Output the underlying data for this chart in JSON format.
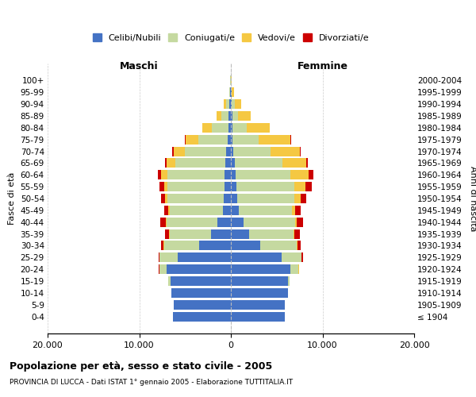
{
  "age_groups": [
    "100+",
    "95-99",
    "90-94",
    "85-89",
    "80-84",
    "75-79",
    "70-74",
    "65-69",
    "60-64",
    "55-59",
    "50-54",
    "45-49",
    "40-44",
    "35-39",
    "30-34",
    "25-29",
    "20-24",
    "15-19",
    "10-14",
    "5-9",
    "0-4"
  ],
  "birth_years": [
    "≤ 1904",
    "1905-1909",
    "1910-1914",
    "1915-1919",
    "1920-1924",
    "1925-1929",
    "1930-1934",
    "1935-1939",
    "1940-1944",
    "1945-1949",
    "1950-1954",
    "1955-1959",
    "1960-1964",
    "1965-1969",
    "1970-1974",
    "1975-1979",
    "1980-1984",
    "1985-1989",
    "1990-1994",
    "1995-1999",
    "2000-2004"
  ],
  "male_celibi": [
    20,
    60,
    150,
    250,
    300,
    350,
    500,
    600,
    700,
    700,
    750,
    850,
    1500,
    2200,
    3500,
    5800,
    7000,
    6600,
    6500,
    6200,
    6300
  ],
  "male_coniugati": [
    30,
    80,
    400,
    800,
    1800,
    3200,
    4500,
    5500,
    6200,
    6200,
    6200,
    5800,
    5500,
    4500,
    3800,
    2000,
    800,
    200,
    10,
    5,
    5
  ],
  "male_vedovi": [
    10,
    40,
    200,
    500,
    1000,
    1400,
    1200,
    900,
    700,
    400,
    200,
    150,
    80,
    60,
    40,
    20,
    10,
    5,
    5,
    0,
    0
  ],
  "male_divorziati": [
    5,
    10,
    20,
    30,
    60,
    100,
    180,
    200,
    400,
    500,
    450,
    450,
    600,
    450,
    300,
    100,
    30,
    10,
    5,
    0,
    0
  ],
  "female_celibi": [
    15,
    50,
    100,
    150,
    200,
    200,
    300,
    400,
    500,
    600,
    700,
    850,
    1400,
    2000,
    3200,
    5500,
    6500,
    6200,
    6200,
    5900,
    5900
  ],
  "female_coniugati": [
    25,
    70,
    300,
    600,
    1500,
    2800,
    4000,
    5200,
    6000,
    6300,
    6200,
    5800,
    5600,
    4800,
    4000,
    2200,
    900,
    200,
    15,
    5,
    5
  ],
  "female_vedovi": [
    50,
    200,
    700,
    1400,
    2500,
    3500,
    3200,
    2600,
    2000,
    1200,
    700,
    400,
    200,
    100,
    60,
    30,
    15,
    5,
    5,
    0,
    0
  ],
  "female_divorziati": [
    5,
    10,
    20,
    40,
    60,
    100,
    150,
    200,
    500,
    700,
    600,
    550,
    700,
    600,
    350,
    150,
    50,
    10,
    5,
    0,
    0
  ],
  "color_celibi": "#4472c4",
  "color_coniugati": "#c5d9a0",
  "color_vedovi": "#f5c842",
  "color_divorziati": "#cc0000",
  "title": "Popolazione per età, sesso e stato civile - 2005",
  "subtitle": "PROVINCIA DI LUCCA - Dati ISTAT 1° gennaio 2005 - Elaborazione TUTTITALIA.IT",
  "xlabel_left": "Maschi",
  "xlabel_right": "Femmine",
  "ylabel_left": "Fasce di età",
  "ylabel_right": "Anni di nascita",
  "xlim": 20000,
  "background_color": "#ffffff",
  "grid_color": "#cccccc"
}
